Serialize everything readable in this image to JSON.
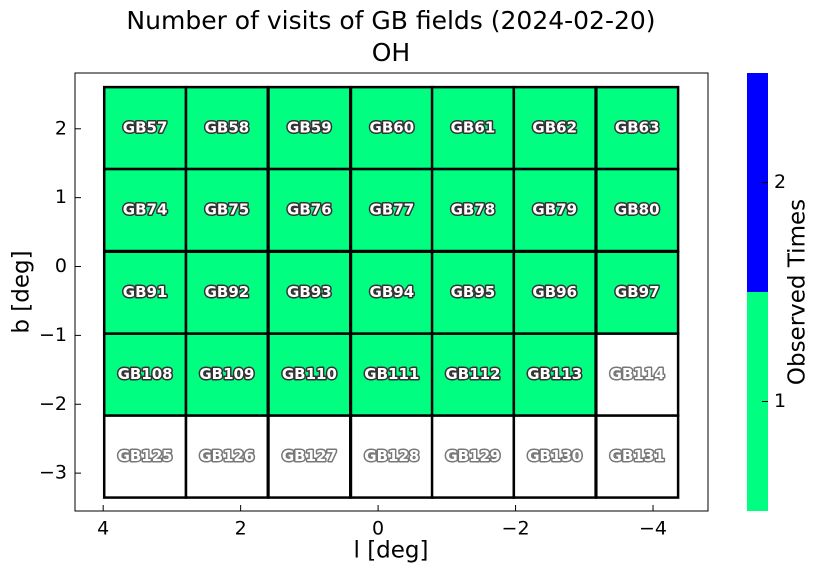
{
  "chart_data": {
    "type": "field-grid",
    "title": "Number of visits of GB fields (2024-02-20)",
    "subtitle": "OH",
    "xlabel": "l [deg]",
    "ylabel": "b [deg]",
    "xlim": [
      4.41,
      -4.8
    ],
    "ylim": [
      -3.55,
      2.81
    ],
    "xticks": [
      4,
      2,
      0,
      {
        "value": -2,
        "label": "−2"
      },
      {
        "value": -4,
        "label": "−4"
      }
    ],
    "yticks": [
      2,
      1,
      0,
      {
        "value": -1,
        "label": "−1"
      },
      {
        "value": -2,
        "label": "−2"
      },
      {
        "value": -3,
        "label": "−3"
      }
    ],
    "field_size": 1.19,
    "empty_color": "#ffffff",
    "fields": {
      "names": [
        "GB57",
        "GB58",
        "GB59",
        "GB60",
        "GB61",
        "GB62",
        "GB63",
        "GB74",
        "GB75",
        "GB76",
        "GB77",
        "GB78",
        "GB79",
        "GB80",
        "GB91",
        "GB92",
        "GB93",
        "GB94",
        "GB95",
        "GB96",
        "GB97",
        "GB108",
        "GB109",
        "GB110",
        "GB111",
        "GB112",
        "GB113",
        "GB114",
        "GB125",
        "GB126",
        "GB127",
        "GB128",
        "GB129",
        "GB130",
        "GB131"
      ],
      "l": [
        3.39,
        2.2,
        1.0,
        -0.2,
        -1.38,
        -2.57,
        -3.77,
        3.39,
        2.2,
        1.0,
        -0.2,
        -1.38,
        -2.57,
        -3.77,
        3.39,
        2.2,
        1.0,
        -0.2,
        -1.38,
        -2.57,
        -3.77,
        3.39,
        2.2,
        1.0,
        -0.2,
        -1.38,
        -2.57,
        -3.77,
        3.39,
        2.2,
        1.0,
        -0.2,
        -1.38,
        -2.57,
        -3.77
      ],
      "b": [
        2.01,
        2.01,
        2.01,
        2.01,
        2.01,
        2.01,
        2.01,
        0.82,
        0.82,
        0.82,
        0.82,
        0.82,
        0.82,
        0.82,
        -0.38,
        -0.38,
        -0.38,
        -0.38,
        -0.38,
        -0.38,
        -0.38,
        -1.57,
        -1.57,
        -1.57,
        -1.57,
        -1.57,
        -1.57,
        -1.57,
        -2.76,
        -2.76,
        -2.76,
        -2.76,
        -2.76,
        -2.76,
        -2.76
      ],
      "values": [
        1,
        1,
        1,
        1,
        1,
        1,
        1,
        1,
        1,
        1,
        1,
        1,
        1,
        1,
        1,
        1,
        1,
        1,
        1,
        1,
        1,
        1,
        1,
        1,
        1,
        1,
        1,
        0,
        0,
        0,
        0,
        0,
        0,
        0,
        0
      ]
    },
    "colorbar": {
      "label": "Observed Times",
      "lim": [
        0.5,
        2.5
      ],
      "ticks": [
        1,
        2
      ],
      "bins": [
        0.5,
        1.5,
        2.5
      ],
      "colors": [
        "#00ff80",
        "#0000ff"
      ]
    }
  }
}
